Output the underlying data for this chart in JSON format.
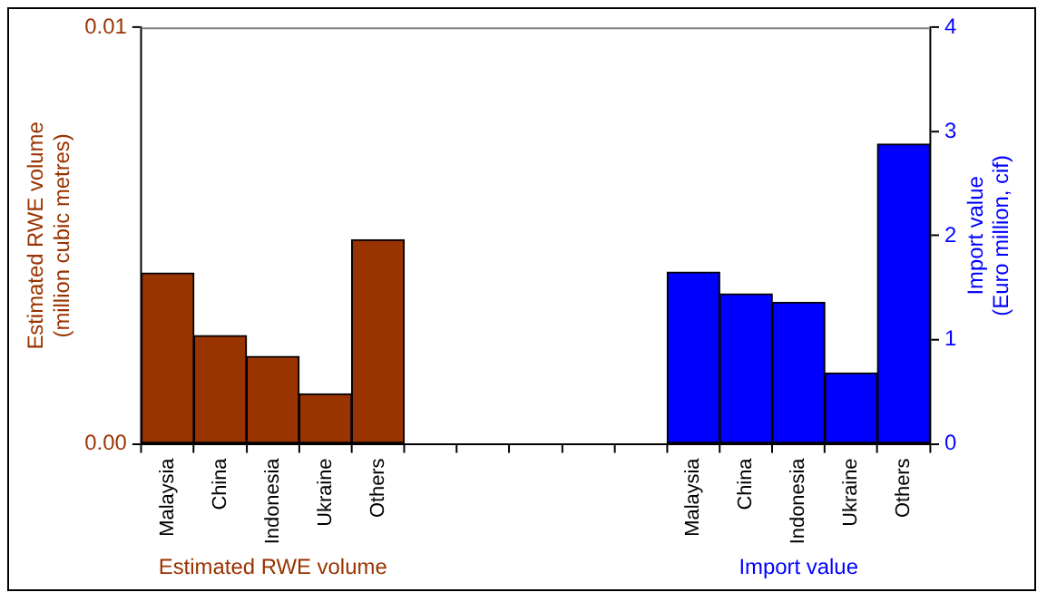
{
  "chart_data": {
    "type": "bar",
    "ylabel": "Estimated RWE volume\n(million cubic metres)",
    "y2label": "Import value\n(Euro million, cif)",
    "categories": [
      "Malaysia",
      "China",
      "Indonesia",
      "Ukraine",
      "Others",
      null,
      null,
      null,
      null,
      null,
      "Malaysia",
      "China",
      "Indonesia",
      "Ukraine",
      "Others"
    ],
    "series": [
      {
        "name": "Estimated RWE volume",
        "color": "#993300",
        "values": [
          0.0041,
          0.0026,
          0.0021,
          0.0012,
          0.0049,
          null,
          null,
          null,
          null,
          null,
          null,
          null,
          null,
          null,
          null
        ]
      },
      {
        "name": "Import value",
        "color": "#0000ff",
        "axis": "y2",
        "values": [
          null,
          null,
          null,
          null,
          null,
          null,
          null,
          null,
          null,
          null,
          1.65,
          1.44,
          1.36,
          0.68,
          2.88
        ]
      }
    ],
    "ylim": [
      0,
      0.01
    ],
    "yticks": [
      {
        "value": 0,
        "label": "0.00"
      },
      0.01
    ],
    "y2lim": [
      0,
      4
    ],
    "y2ticks": [
      0,
      1,
      2,
      3,
      4
    ]
  }
}
